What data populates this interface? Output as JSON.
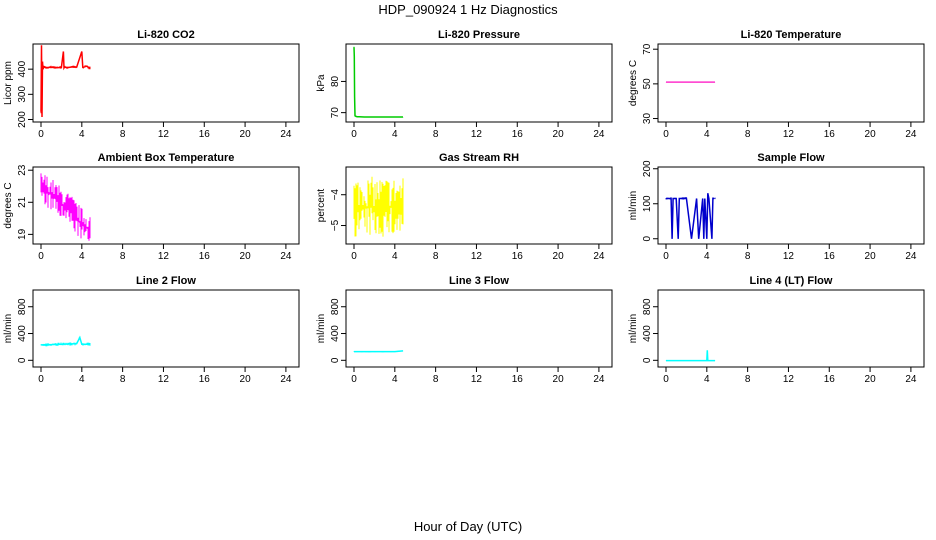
{
  "figure": {
    "title": "HDP_090924  1 Hz Diagnostics",
    "xlabel": "Hour of Day (UTC)"
  },
  "chart_data": [
    {
      "type": "line",
      "title": "Li-820 CO2",
      "ylabel": "Licor ppm",
      "color": "#ff0000",
      "xlim": [
        0,
        24.5
      ],
      "xticks": [
        0,
        4,
        8,
        12,
        16,
        20,
        24
      ],
      "ylim": [
        190,
        500
      ],
      "yticks": [
        200,
        300,
        400
      ],
      "x": [
        0.0,
        0.05,
        0.1,
        0.15,
        0.2,
        0.3,
        0.5,
        1.0,
        1.5,
        2.0,
        2.2,
        2.25,
        2.3,
        2.6,
        3.0,
        3.5,
        4.0,
        4.1,
        4.15,
        4.2,
        4.5,
        4.7
      ],
      "y": [
        230,
        495,
        210,
        430,
        400,
        410,
        405,
        408,
        406,
        407,
        470,
        405,
        408,
        406,
        409,
        408,
        470,
        407,
        406,
        408,
        412,
        405
      ],
      "bounds": {
        "x": [
          0,
          4.8
        ],
        "y": [
          205,
          495
        ]
      }
    },
    {
      "type": "line",
      "title": "Li-820 Pressure",
      "ylabel": "kPa",
      "color": "#00cc00",
      "xlim": [
        0,
        24.5
      ],
      "xticks": [
        0,
        4,
        8,
        12,
        16,
        20,
        24
      ],
      "ylim": [
        67,
        92
      ],
      "yticks": [
        70,
        80
      ],
      "x": [
        0.0,
        0.03,
        0.06,
        0.1,
        0.2,
        0.3,
        0.5,
        1.0,
        2.0,
        3.0,
        4.0,
        4.8
      ],
      "y": [
        91,
        88,
        75,
        69,
        68.8,
        68.7,
        68.7,
        68.6,
        68.6,
        68.6,
        68.6,
        68.6
      ],
      "bounds": {
        "x": [
          0,
          4.8
        ],
        "y": [
          68.2,
          91.5
        ]
      }
    },
    {
      "type": "line",
      "title": "Li-820 Temperature",
      "ylabel": "degrees C",
      "color": "#ff33cc",
      "xlim": [
        0,
        24.5
      ],
      "xticks": [
        0,
        4,
        8,
        12,
        16,
        20,
        24
      ],
      "ylim": [
        28,
        73
      ],
      "yticks": [
        30,
        50,
        70
      ],
      "x": [
        0.0,
        4.8
      ],
      "y": [
        51,
        51
      ],
      "bounds": {
        "x": [
          0,
          4.8
        ],
        "y": [
          50.7,
          51.3
        ]
      }
    },
    {
      "type": "line",
      "title": "Ambient Box Temperature",
      "ylabel": "degrees C",
      "color": "#ff00ff",
      "xlim": [
        0,
        24.5
      ],
      "xticks": [
        0,
        4,
        8,
        12,
        16,
        20,
        24
      ],
      "ylim": [
        18.4,
        23.2
      ],
      "yticks": [
        19,
        21,
        23
      ],
      "x": [
        0.0,
        1.0,
        2.0,
        3.0,
        4.0,
        4.8
      ],
      "y": [
        21.9,
        21.5,
        20.9,
        20.4,
        19.6,
        19.3
      ],
      "bounds": {
        "x": [
          0,
          4.8
        ],
        "y": [
          18.6,
          22.8
        ]
      }
    },
    {
      "type": "line",
      "title": "Gas Stream RH",
      "ylabel": "percent",
      "color": "#ffff00",
      "xlim": [
        0,
        24.5
      ],
      "xticks": [
        0,
        4,
        8,
        12,
        16,
        20,
        24
      ],
      "ylim": [
        -5.6,
        -3.1
      ],
      "yticks": [
        -5.0,
        -4.0
      ],
      "x": [
        0.0,
        2.5,
        4.8
      ],
      "y": [
        -4.4,
        -4.4,
        -4.4
      ],
      "bounds": {
        "x": [
          0,
          4.8
        ],
        "y": [
          -5.4,
          -3.2
        ]
      }
    },
    {
      "type": "line",
      "title": "Sample Flow",
      "ylabel": "ml/min",
      "color": "#0000cc",
      "xlim": [
        0,
        24.5
      ],
      "xticks": [
        0,
        4,
        8,
        12,
        16,
        20,
        24
      ],
      "ylim": [
        -15,
        205
      ],
      "yticks": [
        0,
        100,
        200
      ],
      "x": [
        0.0,
        0.5,
        0.6,
        0.7,
        1.0,
        1.2,
        1.3,
        1.5,
        2.0,
        2.5,
        3.0,
        3.2,
        3.6,
        3.7,
        3.8,
        4.0,
        4.1,
        4.2,
        4.5,
        4.6,
        4.7
      ],
      "y": [
        115,
        115,
        0,
        115,
        115,
        0,
        115,
        115,
        116,
        0,
        115,
        0,
        115,
        0,
        115,
        0,
        130,
        115,
        0,
        115,
        115
      ],
      "bounds": {
        "x": [
          0,
          4.8
        ],
        "y": [
          -5,
          130
        ]
      }
    },
    {
      "type": "line",
      "title": "Line 2 Flow",
      "ylabel": "ml/min",
      "color": "#00ffff",
      "xlim": [
        0,
        24.5
      ],
      "xticks": [
        0,
        4,
        8,
        12,
        16,
        20,
        24
      ],
      "ylim": [
        -100,
        1050
      ],
      "yticks": [
        0,
        400,
        800
      ],
      "x": [
        0.0,
        1.0,
        2.0,
        3.0,
        3.5,
        3.8,
        4.0,
        4.8
      ],
      "y": [
        230,
        235,
        240,
        245,
        250,
        340,
        240,
        240
      ],
      "bounds": {
        "x": [
          0,
          4.8
        ],
        "y": [
          100,
          360
        ]
      }
    },
    {
      "type": "line",
      "title": "Line 3 Flow",
      "ylabel": "ml/min",
      "color": "#00ffff",
      "xlim": [
        0,
        24.5
      ],
      "xticks": [
        0,
        4,
        8,
        12,
        16,
        20,
        24
      ],
      "ylim": [
        -100,
        1050
      ],
      "yticks": [
        0,
        400,
        800
      ],
      "x": [
        0.0,
        1.0,
        2.0,
        3.0,
        4.0,
        4.8
      ],
      "y": [
        130,
        130,
        130,
        130,
        130,
        140
      ],
      "bounds": {
        "x": [
          0,
          4.8
        ],
        "y": [
          80,
          200
        ]
      }
    },
    {
      "type": "line",
      "title": "Line 4 (LT) Flow",
      "ylabel": "ml/min",
      "color": "#00ffff",
      "xlim": [
        0,
        24.5
      ],
      "xticks": [
        0,
        4,
        8,
        12,
        16,
        20,
        24
      ],
      "ylim": [
        -100,
        1050
      ],
      "yticks": [
        0,
        400,
        800
      ],
      "x": [
        0.0,
        1.0,
        2.0,
        3.0,
        4.0,
        4.05,
        4.1,
        4.8
      ],
      "y": [
        -5,
        -5,
        -5,
        -5,
        -5,
        150,
        -5,
        -5
      ],
      "bounds": {
        "x": [
          0,
          4.8
        ],
        "y": [
          -20,
          160
        ]
      }
    }
  ]
}
